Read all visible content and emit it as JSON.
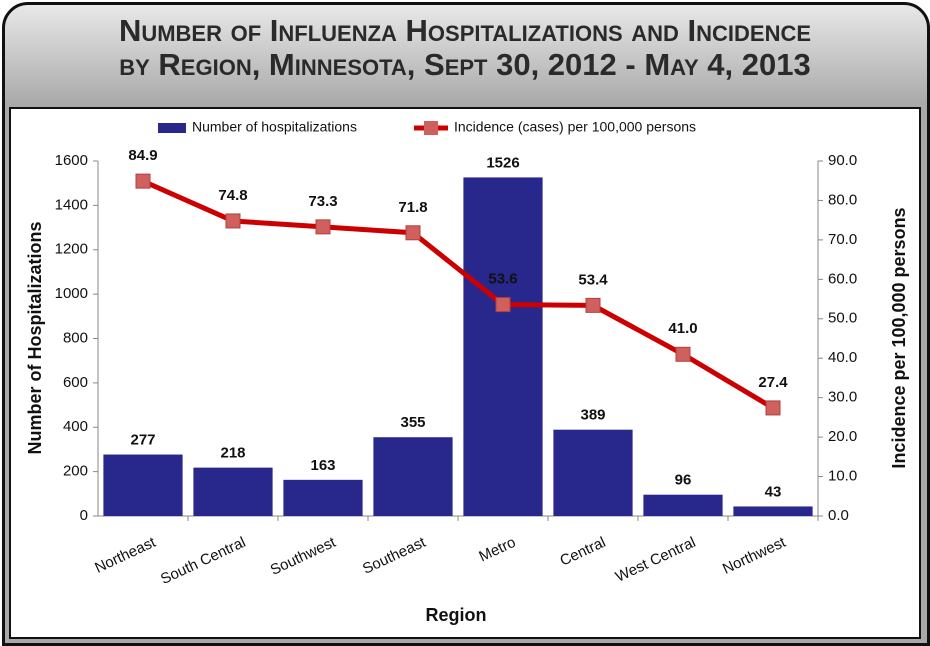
{
  "chart_data": {
    "type": "bar-line",
    "title": [
      "Number of Influenza Hospitalizations and Incidence",
      "by Region, Minnesota, Sept 30, 2012 - May 4, 2013"
    ],
    "categories": [
      "Northeast",
      "South Central",
      "Southwest",
      "Southeast",
      "Metro",
      "Central",
      "West Central",
      "Northwest"
    ],
    "series": [
      {
        "name": "Number of hospitalizations",
        "type": "bar",
        "color": "#27278c",
        "values": [
          277,
          218,
          163,
          355,
          1526,
          389,
          96,
          43
        ]
      },
      {
        "name": "Incidence (cases) per 100,000 persons",
        "type": "line",
        "axis": "y2",
        "color": "#cc0000",
        "marker_color": "#d0605d",
        "values": [
          84.9,
          74.8,
          73.3,
          71.8,
          53.6,
          53.4,
          41.0,
          27.4
        ],
        "value_labels": [
          "84.9",
          "74.8",
          "73.3",
          "71.8",
          "53.6",
          "53.4",
          "41.0",
          "27.4"
        ]
      }
    ],
    "xlabel": "Region",
    "ylabel": "Number of Hospitalizations",
    "y2label": "Incidence per 100,000 persons",
    "ylim": [
      0,
      1600
    ],
    "yticks": [
      0,
      200,
      400,
      600,
      800,
      1000,
      1200,
      1400,
      1600
    ],
    "y2lim": [
      0,
      90
    ],
    "y2ticks": [
      {
        "value": 0,
        "label": "0.0"
      },
      {
        "value": 10,
        "label": "10.0"
      },
      {
        "value": 20,
        "label": "20.0"
      },
      {
        "value": 30,
        "label": "30.0"
      },
      {
        "value": 40,
        "label": "40.0"
      },
      {
        "value": 50,
        "label": "50.0"
      },
      {
        "value": 60,
        "label": "60.0"
      },
      {
        "value": 70,
        "label": "70.0"
      },
      {
        "value": 80,
        "label": "80.0"
      },
      {
        "value": 90,
        "label": "90.0"
      }
    ],
    "legend": "top"
  }
}
